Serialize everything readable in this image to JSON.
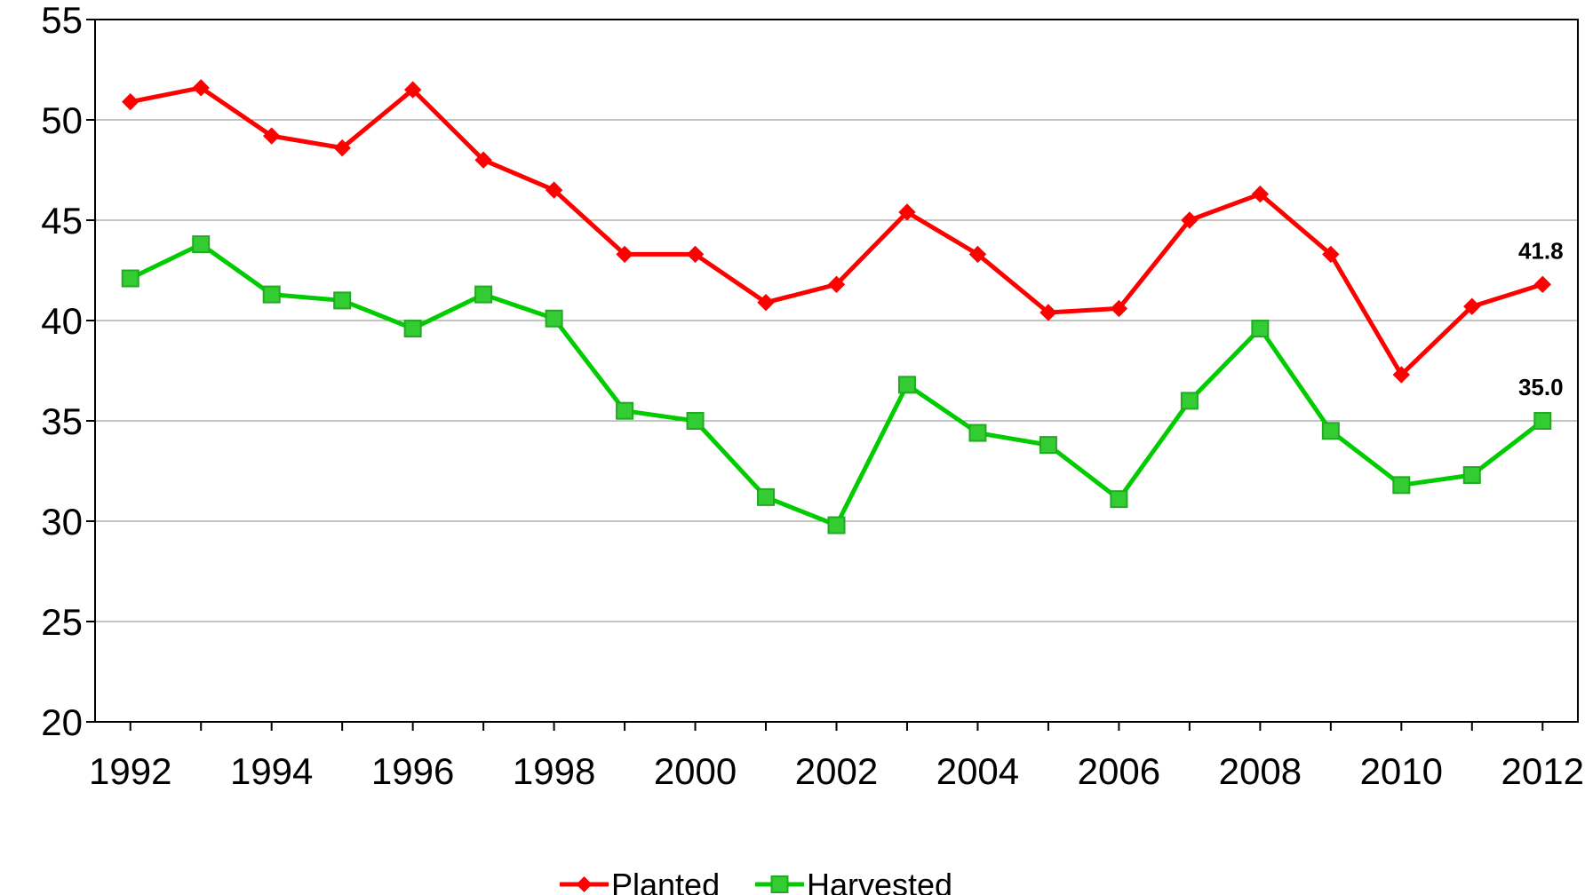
{
  "chart_data": {
    "type": "line",
    "title": "",
    "xlabel": "",
    "ylabel": "",
    "x": [
      1992,
      1993,
      1994,
      1995,
      1996,
      1997,
      1998,
      1999,
      2000,
      2001,
      2002,
      2003,
      2004,
      2005,
      2006,
      2007,
      2008,
      2009,
      2010,
      2011,
      2012
    ],
    "x_tick_labels": [
      "1992",
      "1994",
      "1996",
      "1998",
      "2000",
      "2002",
      "2004",
      "2006",
      "2008",
      "2010",
      "2012"
    ],
    "y_tick_labels": [
      "20",
      "25",
      "30",
      "35",
      "40",
      "45",
      "50",
      "55"
    ],
    "ylim": [
      20,
      55
    ],
    "grid": "horizontal",
    "legend_position": "bottom-center",
    "series": [
      {
        "name": "Planted",
        "color": "#ff0000",
        "marker": "diamond",
        "values": [
          50.9,
          51.6,
          49.2,
          48.6,
          51.5,
          48.0,
          46.5,
          43.3,
          43.3,
          40.9,
          41.8,
          45.4,
          43.3,
          40.4,
          40.6,
          45.0,
          46.3,
          43.3,
          37.3,
          40.7,
          41.8
        ],
        "end_label": "41.8"
      },
      {
        "name": "Harvested",
        "color": "#00cc00",
        "marker": "square",
        "values": [
          42.1,
          43.8,
          41.3,
          41.0,
          39.6,
          41.3,
          40.1,
          35.5,
          35.0,
          31.2,
          29.8,
          36.8,
          34.4,
          33.8,
          31.1,
          36.0,
          39.6,
          34.5,
          31.8,
          32.3,
          35.0
        ],
        "end_label": "35.0"
      }
    ]
  }
}
